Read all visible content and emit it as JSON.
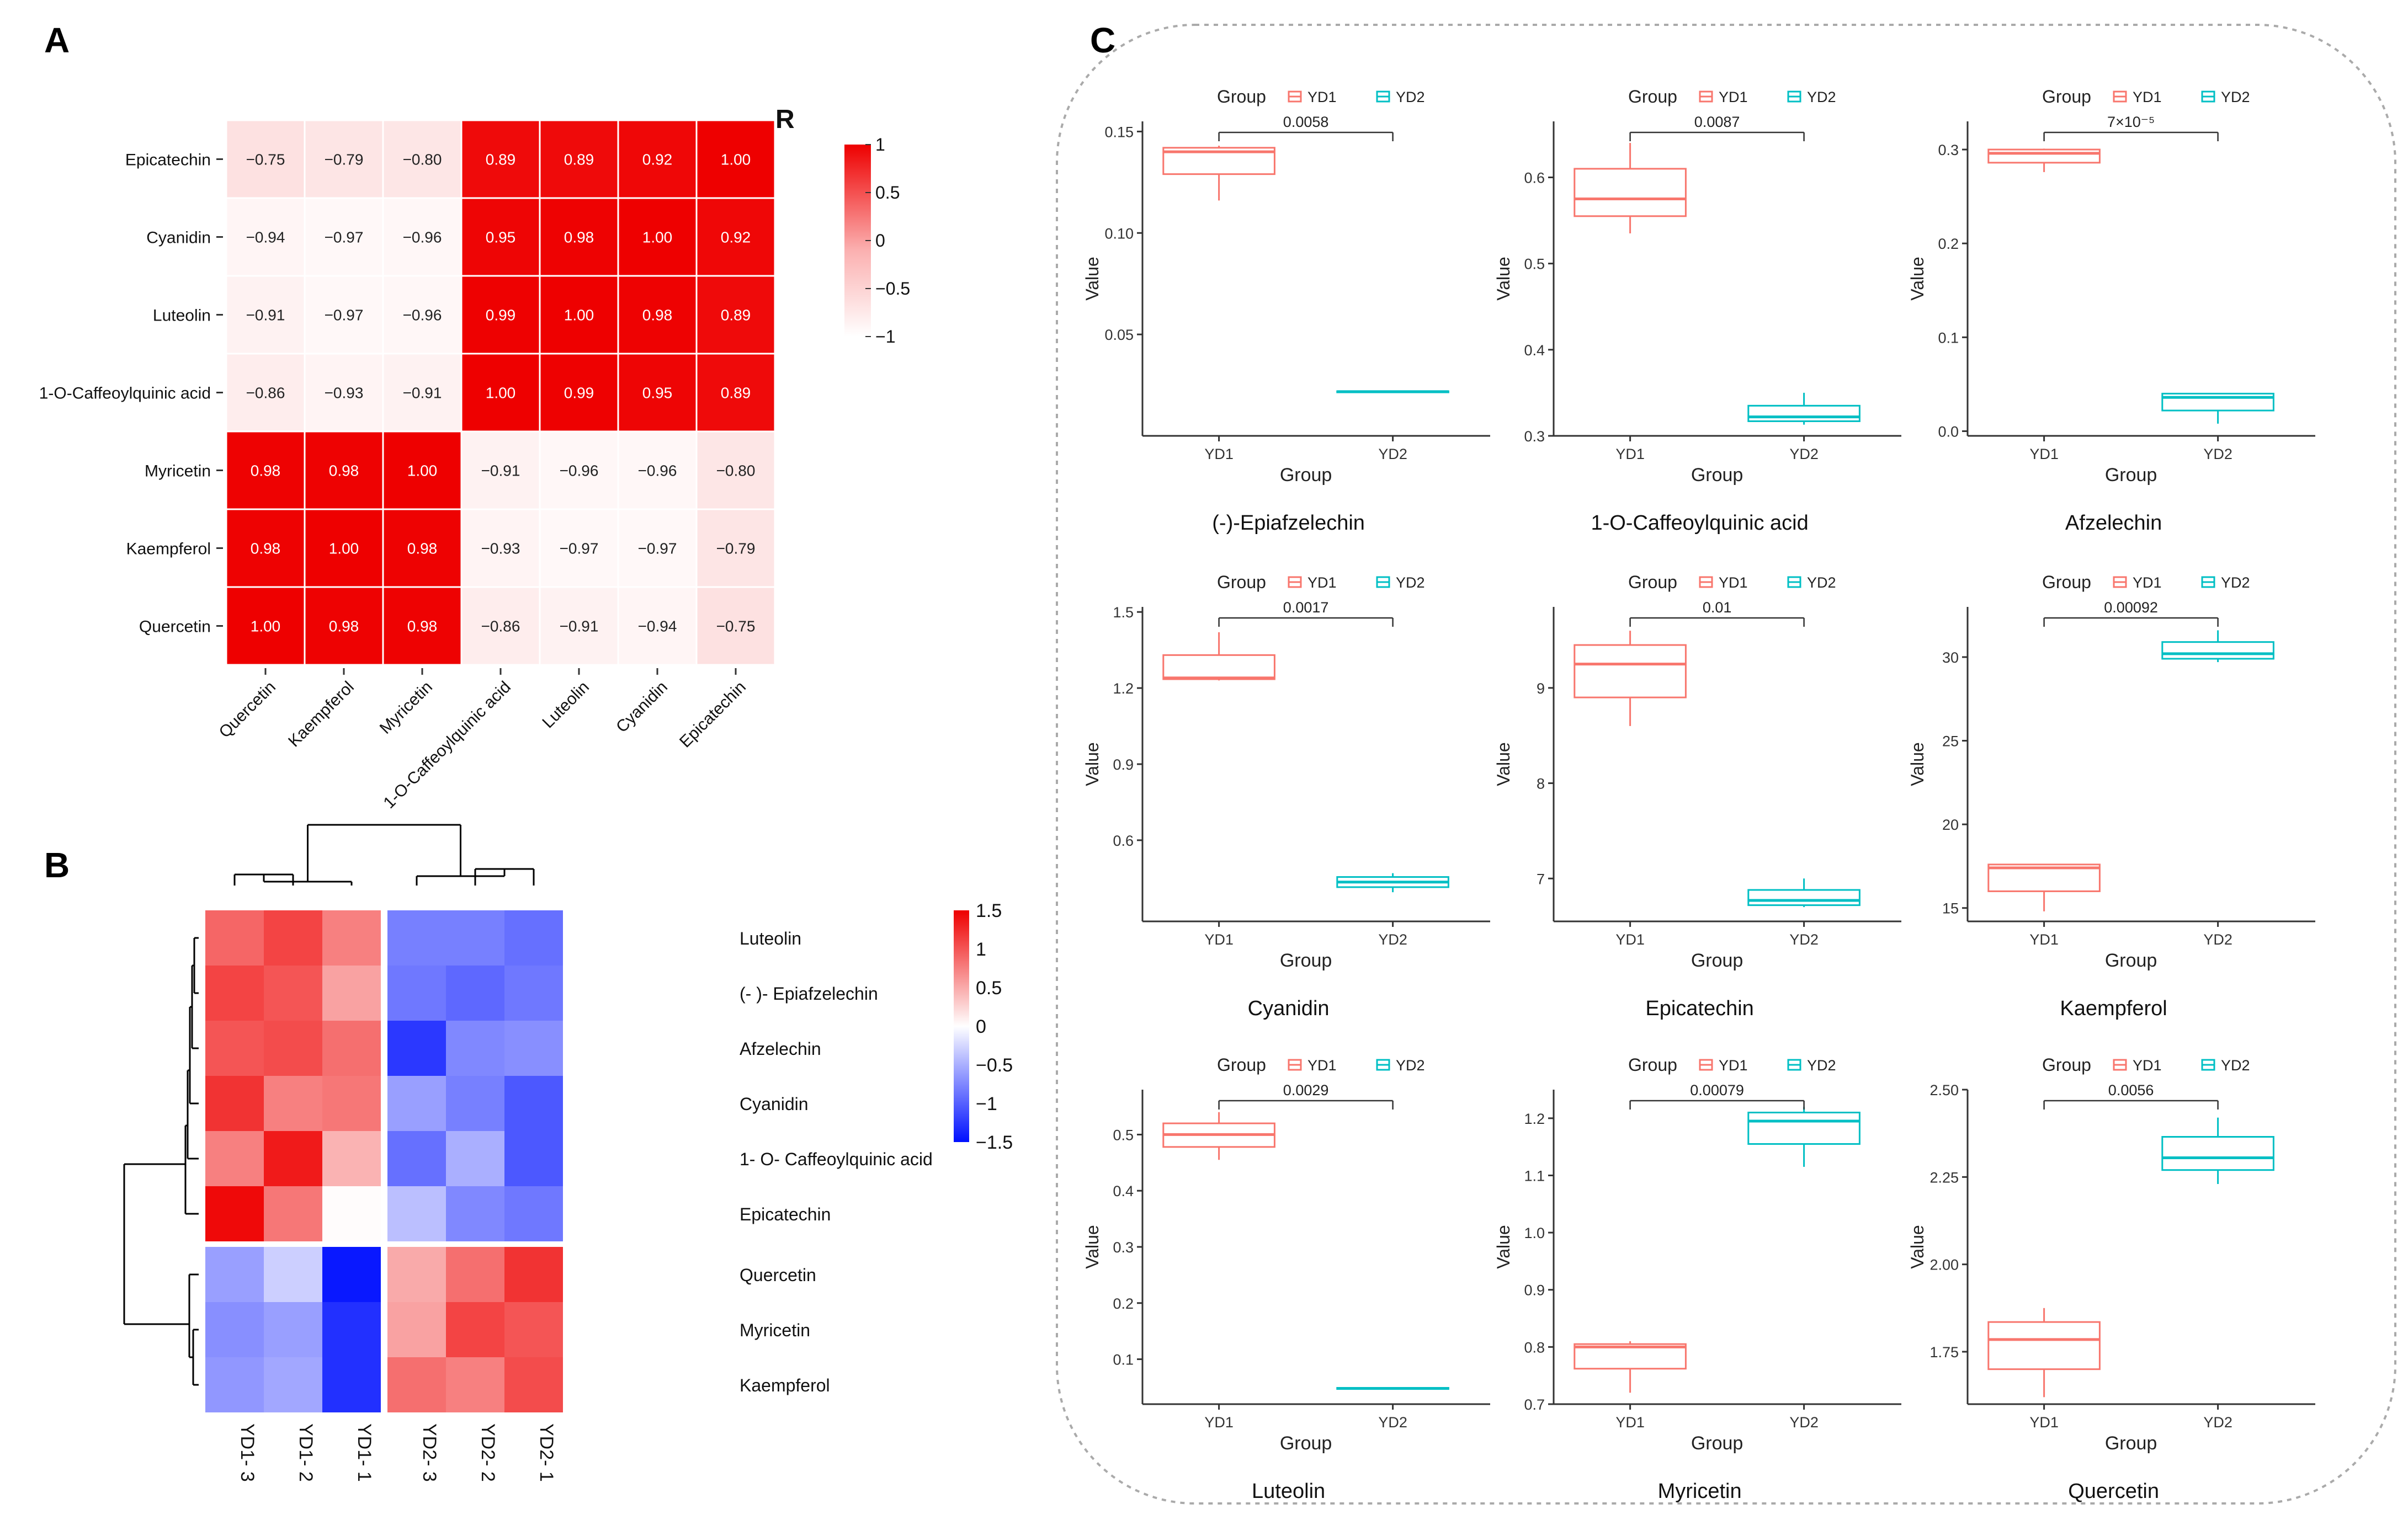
{
  "panel_labels": [
    "A",
    "B",
    "C"
  ],
  "colors": {
    "heat_red": "#ee0000",
    "heat_blue": "#0010ff",
    "yd1": "#f8766d",
    "yd2": "#00bfc4",
    "axis": "#333333",
    "frame": "#aaaaaa"
  },
  "chart_data": [
    {
      "id": "A",
      "type": "heatmap",
      "title": "",
      "legend_title": "R",
      "legend_ticks": [
        "1",
        "0.5",
        "0",
        "−0.5",
        "−1"
      ],
      "legend_values": [
        1,
        0.5,
        0,
        -0.5,
        -1
      ],
      "rows": [
        "Epicatechin",
        "Cyanidin",
        "Luteolin",
        "1-O-Caffeoylquinic acid",
        "Myricetin",
        "Kaempferol",
        "Quercetin"
      ],
      "cols": [
        "Quercetin",
        "Kaempferol",
        "Myricetin",
        "1-O-Caffeoylquinic acid",
        "Luteolin",
        "Cyanidin",
        "Epicatechin"
      ],
      "labels": [
        [
          "−0.75",
          "−0.79",
          "−0.80",
          "0.89",
          "0.89",
          "0.92",
          "1.00"
        ],
        [
          "−0.94",
          "−0.97",
          "−0.96",
          "0.95",
          "0.98",
          "1.00",
          "0.92"
        ],
        [
          "−0.91",
          "−0.97",
          "−0.96",
          "0.99",
          "1.00",
          "0.98",
          "0.89"
        ],
        [
          "−0.86",
          "−0.93",
          "−0.91",
          "1.00",
          "0.99",
          "0.95",
          "0.89"
        ],
        [
          "0.98",
          "0.98",
          "1.00",
          "−0.91",
          "−0.96",
          "−0.96",
          "−0.80"
        ],
        [
          "0.98",
          "1.00",
          "0.98",
          "−0.93",
          "−0.97",
          "−0.97",
          "−0.79"
        ],
        [
          "1.00",
          "0.98",
          "0.98",
          "−0.86",
          "−0.91",
          "−0.94",
          "−0.75"
        ]
      ],
      "values": [
        [
          -0.75,
          -0.79,
          -0.8,
          0.89,
          0.89,
          0.92,
          1.0
        ],
        [
          -0.94,
          -0.97,
          -0.96,
          0.95,
          0.98,
          1.0,
          0.92
        ],
        [
          -0.91,
          -0.97,
          -0.96,
          0.99,
          1.0,
          0.98,
          0.89
        ],
        [
          -0.86,
          -0.93,
          -0.91,
          1.0,
          0.99,
          0.95,
          0.89
        ],
        [
          0.98,
          0.98,
          1.0,
          -0.91,
          -0.96,
          -0.96,
          -0.8
        ],
        [
          0.98,
          1.0,
          0.98,
          -0.93,
          -0.97,
          -0.97,
          -0.79
        ],
        [
          1.0,
          0.98,
          0.98,
          -0.86,
          -0.91,
          -0.94,
          -0.75
        ]
      ]
    },
    {
      "id": "B",
      "type": "heatmap",
      "title": "",
      "legend_ticks": [
        "1.5",
        "1",
        "0.5",
        "0",
        "−0.5",
        "−1",
        "−1.5"
      ],
      "legend_values": [
        1.5,
        1,
        0.5,
        0,
        -0.5,
        -1,
        -1.5
      ],
      "rows": [
        "Luteolin",
        "(- )- Epiafzelechin",
        "Afzelechin",
        "Cyanidin",
        "1- O- Caffeoylquinic acid",
        "Epicatechin",
        "Quercetin",
        "Myricetin",
        "Kaempferol"
      ],
      "cols": [
        "YD1- 3",
        "YD1- 2",
        "YD1- 1",
        "YD2- 3",
        "YD2- 2",
        "YD2- 1"
      ],
      "values": [
        [
          0.9,
          1.1,
          0.75,
          -0.8,
          -0.8,
          -0.9
        ],
        [
          1.1,
          1.0,
          0.55,
          -0.85,
          -0.95,
          -0.85
        ],
        [
          1.0,
          1.05,
          0.85,
          -1.25,
          -0.75,
          -0.7
        ],
        [
          1.2,
          0.75,
          0.8,
          -0.6,
          -0.8,
          -1.05
        ],
        [
          0.75,
          1.35,
          0.45,
          -0.9,
          -0.5,
          -1.05
        ],
        [
          1.45,
          0.8,
          0.02,
          -0.4,
          -0.75,
          -0.85
        ],
        [
          -0.6,
          -0.3,
          -1.45,
          0.5,
          0.85,
          1.2
        ],
        [
          -0.7,
          -0.6,
          -1.3,
          0.55,
          1.1,
          1.0
        ],
        [
          -0.65,
          -0.55,
          -1.3,
          0.85,
          0.75,
          1.05
        ]
      ]
    },
    {
      "id": "C",
      "type": "box",
      "legend_title": "Group",
      "groups": [
        "YD1",
        "YD2"
      ],
      "xlabel": "Group",
      "ylabel": "Value",
      "plots": [
        {
          "title": "(-)-Epiafzelechin",
          "pvalue": "0.0058",
          "ylim": [
            0,
            0.155
          ],
          "yticks": [
            0.05,
            0.1,
            0.15
          ],
          "yticklabels": [
            "0.05",
            "0.10",
            "0.15"
          ],
          "boxes": [
            {
              "min": 0.116,
              "q1": 0.129,
              "median": 0.14,
              "q3": 0.142,
              "max": 0.143
            },
            {
              "min": 0.0215,
              "q1": 0.0215,
              "median": 0.0218,
              "q3": 0.022,
              "max": 0.022
            }
          ]
        },
        {
          "title": "1-O-Caffeoylquinic acid",
          "pvalue": "0.0087",
          "ylim": [
            0.3,
            0.665
          ],
          "yticks": [
            0.3,
            0.4,
            0.5,
            0.6
          ],
          "yticklabels": [
            "0.3",
            "0.4",
            "0.5",
            "0.6"
          ],
          "boxes": [
            {
              "min": 0.535,
              "q1": 0.555,
              "median": 0.575,
              "q3": 0.61,
              "max": 0.64
            },
            {
              "min": 0.313,
              "q1": 0.317,
              "median": 0.322,
              "q3": 0.335,
              "max": 0.35
            }
          ]
        },
        {
          "title": "Afzelechin",
          "pvalue": "7×10⁻⁵",
          "ylim": [
            -0.005,
            0.33
          ],
          "yticks": [
            0.0,
            0.1,
            0.2,
            0.3
          ],
          "yticklabels": [
            "0.0",
            "0.1",
            "0.2",
            "0.3"
          ],
          "boxes": [
            {
              "min": 0.276,
              "q1": 0.286,
              "median": 0.296,
              "q3": 0.3,
              "max": 0.301
            },
            {
              "min": 0.008,
              "q1": 0.022,
              "median": 0.036,
              "q3": 0.04,
              "max": 0.04
            }
          ]
        },
        {
          "title": "Cyanidin",
          "pvalue": "0.0017",
          "ylim": [
            0.28,
            1.52
          ],
          "yticks": [
            0.6,
            0.9,
            1.2,
            1.5
          ],
          "yticklabels": [
            "0.6",
            "0.9",
            "1.2",
            "1.5"
          ],
          "boxes": [
            {
              "min": 1.23,
              "q1": 1.235,
              "median": 1.24,
              "q3": 1.33,
              "max": 1.42
            },
            {
              "min": 0.395,
              "q1": 0.415,
              "median": 0.435,
              "q3": 0.455,
              "max": 0.47
            }
          ]
        },
        {
          "title": "Epicatechin",
          "pvalue": "0.01",
          "ylim": [
            6.55,
            9.85
          ],
          "yticks": [
            7,
            8,
            9
          ],
          "yticklabels": [
            "7",
            "8",
            "9"
          ],
          "boxes": [
            {
              "min": 8.6,
              "q1": 8.9,
              "median": 9.25,
              "q3": 9.45,
              "max": 9.6
            },
            {
              "min": 6.7,
              "q1": 6.72,
              "median": 6.77,
              "q3": 6.88,
              "max": 7.0
            }
          ]
        },
        {
          "title": "Kaempferol",
          "pvalue": "0.00092",
          "ylim": [
            14.2,
            33.0
          ],
          "yticks": [
            15,
            20,
            25,
            30
          ],
          "yticklabels": [
            "15",
            "20",
            "25",
            "30"
          ],
          "boxes": [
            {
              "min": 14.8,
              "q1": 16.0,
              "median": 17.4,
              "q3": 17.6,
              "max": 17.6
            },
            {
              "min": 29.7,
              "q1": 29.9,
              "median": 30.2,
              "q3": 30.9,
              "max": 31.6
            }
          ]
        },
        {
          "title": "Luteolin",
          "pvalue": "0.0029",
          "ylim": [
            0.02,
            0.58
          ],
          "yticks": [
            0.1,
            0.2,
            0.3,
            0.4,
            0.5
          ],
          "yticklabels": [
            "0.1",
            "0.2",
            "0.3",
            "0.4",
            "0.5"
          ],
          "boxes": [
            {
              "min": 0.455,
              "q1": 0.478,
              "median": 0.5,
              "q3": 0.52,
              "max": 0.54
            },
            {
              "min": 0.046,
              "q1": 0.047,
              "median": 0.048,
              "q3": 0.049,
              "max": 0.049
            }
          ]
        },
        {
          "title": "Myricetin",
          "pvalue": "0.00079",
          "ylim": [
            0.7,
            1.25
          ],
          "yticks": [
            0.7,
            0.8,
            0.9,
            1.0,
            1.1,
            1.2
          ],
          "yticklabels": [
            "0.7",
            "0.8",
            "0.9",
            "1.0",
            "1.1",
            "1.2"
          ],
          "boxes": [
            {
              "min": 0.72,
              "q1": 0.762,
              "median": 0.8,
              "q3": 0.805,
              "max": 0.81
            },
            {
              "min": 1.115,
              "q1": 1.155,
              "median": 1.195,
              "q3": 1.21,
              "max": 1.22
            }
          ]
        },
        {
          "title": "Quercetin",
          "pvalue": "0.0056",
          "ylim": [
            1.6,
            2.5
          ],
          "yticks": [
            1.75,
            2.0,
            2.25,
            2.5
          ],
          "yticklabels": [
            "1.75",
            "2.00",
            "2.25",
            "2.50"
          ],
          "boxes": [
            {
              "min": 1.62,
              "q1": 1.7,
              "median": 1.785,
              "q3": 1.835,
              "max": 1.875
            },
            {
              "min": 2.23,
              "q1": 2.27,
              "median": 2.305,
              "q3": 2.365,
              "max": 2.42
            }
          ]
        }
      ]
    }
  ]
}
